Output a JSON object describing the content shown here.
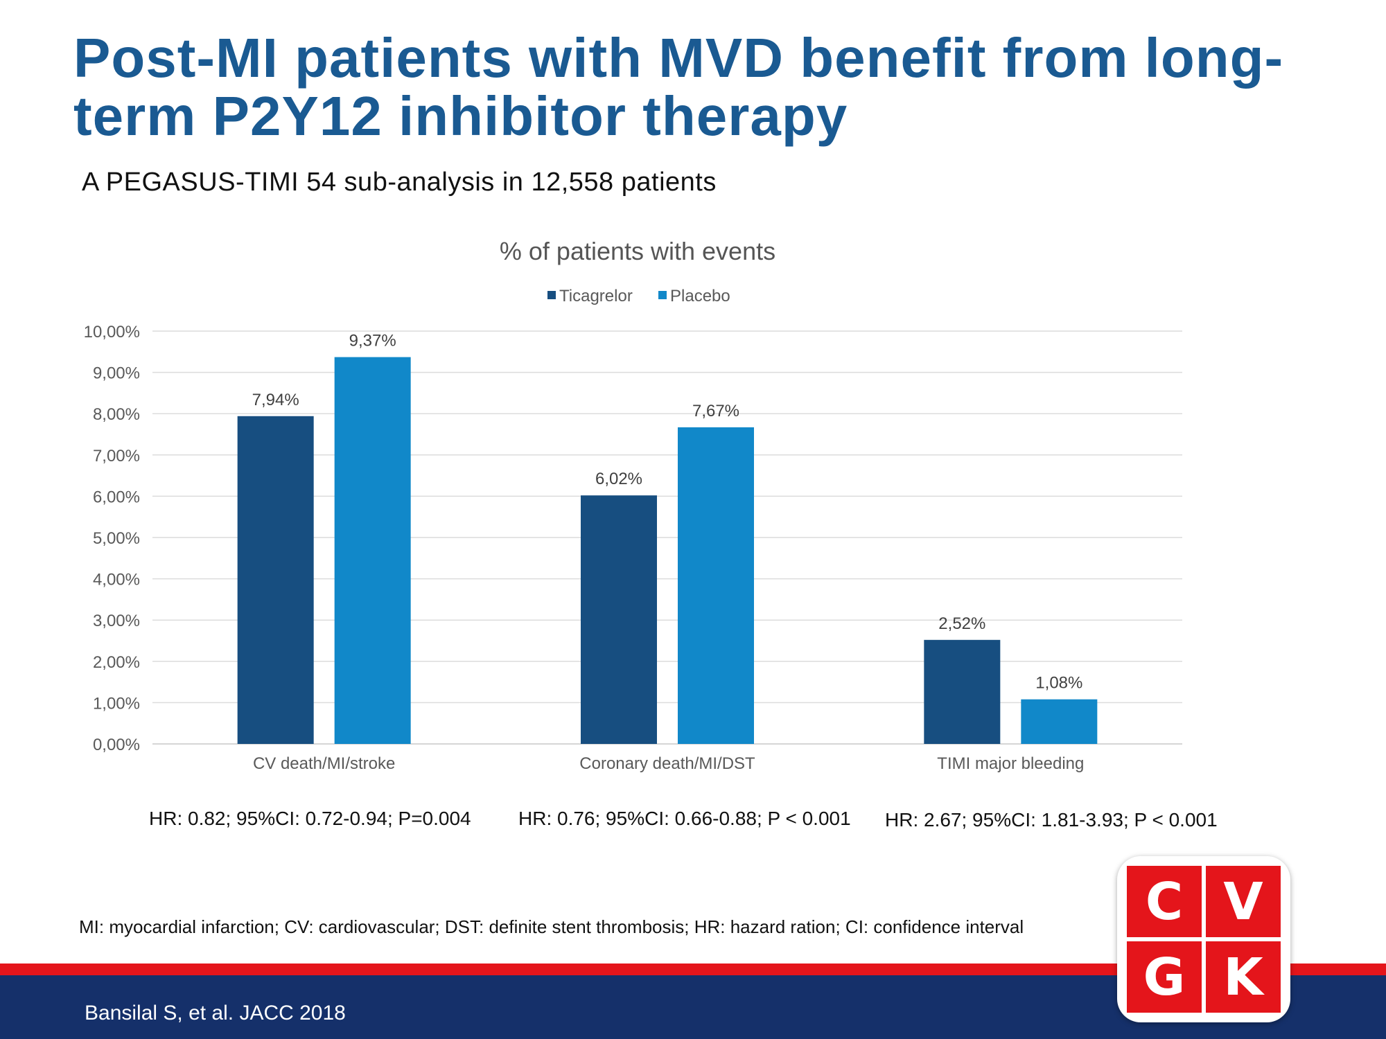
{
  "slide": {
    "title": "Post-MI patients with MVD benefit from long-term P2Y12 inhibitor therapy",
    "subtitle": "A PEGASUS-TIMI  54 sub-analysis  in 12,558 patients",
    "hr": [
      "HR: 0.82; 95%CI: 0.72-0.94; P=0.004",
      "HR: 0.76; 95%CI: 0.66-0.88; P < 0.001",
      "HR: 2.67; 95%CI: 1.81-3.93; P < 0.001"
    ],
    "footnote": "MI: myocardial infarction; CV: cardiovascular;  DST: definite stent thrombosis; HR: hazard ration; CI: confidence  interval",
    "citation": "Bansilal S, et al. JACC 2018"
  },
  "logo": {
    "letters": [
      "C",
      "V",
      "G",
      "K"
    ]
  },
  "colors": {
    "title": "#1a5a92",
    "ticagrelor": "#174e80",
    "placebo": "#1188c9",
    "footer_red": "#e4151b",
    "footer_navy": "#15306a"
  },
  "chart_data": {
    "type": "bar",
    "title": "% of patients with events",
    "categories": [
      "CV death/MI/stroke",
      "Coronary death/MI/DST",
      "TIMI major bleeding"
    ],
    "series": [
      {
        "name": "Ticagrelor",
        "values": [
          7.94,
          6.02,
          2.52
        ],
        "labels": [
          "7,94%",
          "6,02%",
          "2,52%"
        ]
      },
      {
        "name": "Placebo",
        "values": [
          9.37,
          7.67,
          1.08
        ],
        "labels": [
          "9,37%",
          "7,67%",
          "1,08%"
        ]
      }
    ],
    "yticks": [
      "0,00%",
      "1,00%",
      "2,00%",
      "3,00%",
      "4,00%",
      "5,00%",
      "6,00%",
      "7,00%",
      "8,00%",
      "9,00%",
      "10,00%"
    ],
    "ylim": [
      0,
      10
    ],
    "grid": true,
    "legend": "top-center"
  }
}
